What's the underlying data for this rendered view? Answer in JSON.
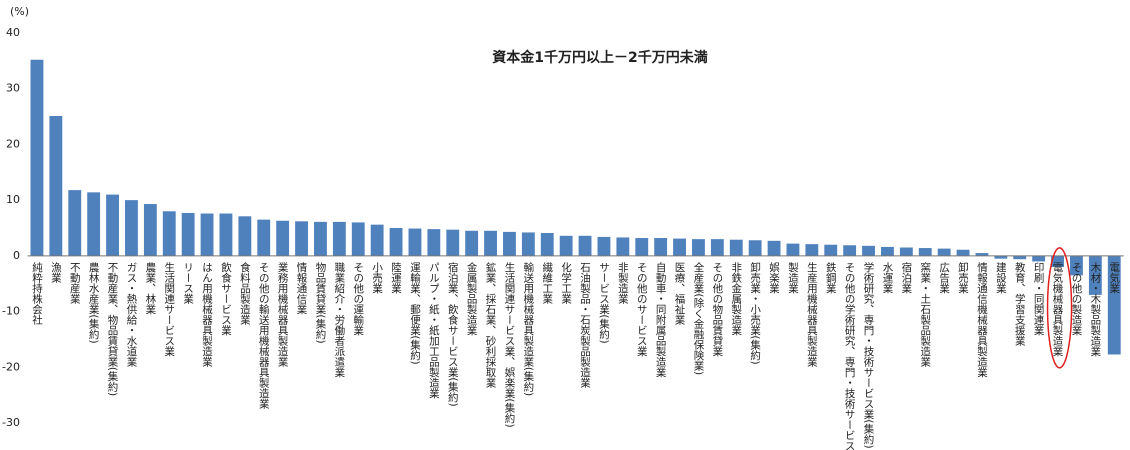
{
  "chart_data": {
    "type": "bar",
    "title": "資本金1千万円以上－2千万円未満",
    "y_label": "(%)",
    "categories": [
      "純粋持株会社",
      "漁業",
      "不動産業",
      "農林水産業(集約)",
      "不動産業、物品賃貸業(集約)",
      "ガス・熱供給・水道業",
      "農業、林業",
      "生活関連サービス業",
      "リース業",
      "はん用機械器具製造業",
      "飲食サービス業",
      "食料品製造業",
      "その他の輸送用機械器具製造業",
      "業務用機械器具製造業",
      "情報通信業",
      "物品賃貸業(集約)",
      "職業紹介・労働者派遣業",
      "その他の運輸業",
      "小売業",
      "陸運業",
      "運輸業、郵便業(集約)",
      "パルプ・紙・紙加工品製造業",
      "宿泊業、飲食サービス業(集約)",
      "金属製品製造業",
      "鉱業、採石業、砂利採取業",
      "生活関連サービス業、娯楽業(集約)",
      "輸送用機械器具製造業(集約)",
      "繊維工業",
      "化学工業",
      "石油製品・石炭製品製造業",
      "サービス業(集約)",
      "非製造業",
      "その他のサービス業",
      "自動車・同附属品製造業",
      "医療、福祉業",
      "全産業(除く金融保険業)",
      "その他の物品賃貸業",
      "非鉄金属製造業",
      "卸売業・小売業(集約)",
      "娯楽業",
      "製造業",
      "生産用機械器具製造業",
      "鉄鋼業",
      "その他の学術研究、専門・技術サービス業",
      "学術研究、専門・技術サービス業(集約)",
      "水運業",
      "宿泊業",
      "窯業・土石製品製造業",
      "広告業",
      "卸売業",
      "情報通信機械器具製造業",
      "建設業",
      "教育、学習支援業",
      "印刷・同関連業",
      "電気機械器具製造業",
      "その他の製造業",
      "木材・木製品製造業",
      "電気業"
    ],
    "values": [
      35.2,
      25.1,
      11.8,
      11.4,
      11.0,
      10.0,
      9.3,
      8.0,
      7.7,
      7.6,
      7.6,
      7.1,
      6.5,
      6.3,
      6.2,
      6.1,
      6.1,
      6.0,
      5.6,
      5.0,
      4.9,
      4.8,
      4.7,
      4.5,
      4.5,
      4.3,
      4.2,
      4.1,
      3.6,
      3.6,
      3.4,
      3.3,
      3.2,
      3.2,
      3.1,
      3.0,
      3.0,
      2.9,
      2.8,
      2.7,
      2.2,
      2.1,
      2.0,
      1.9,
      1.8,
      1.6,
      1.5,
      1.4,
      1.3,
      1.1,
      0.5,
      -0.5,
      -0.6,
      -1.0,
      -2.0,
      -3.5,
      -7.0,
      -17.7
    ],
    "color": "#4f81bd",
    "ylim": [
      -30,
      40
    ],
    "yticks": [
      -30,
      -20,
      -10,
      0,
      10,
      20,
      30,
      40
    ],
    "grid": false
  }
}
